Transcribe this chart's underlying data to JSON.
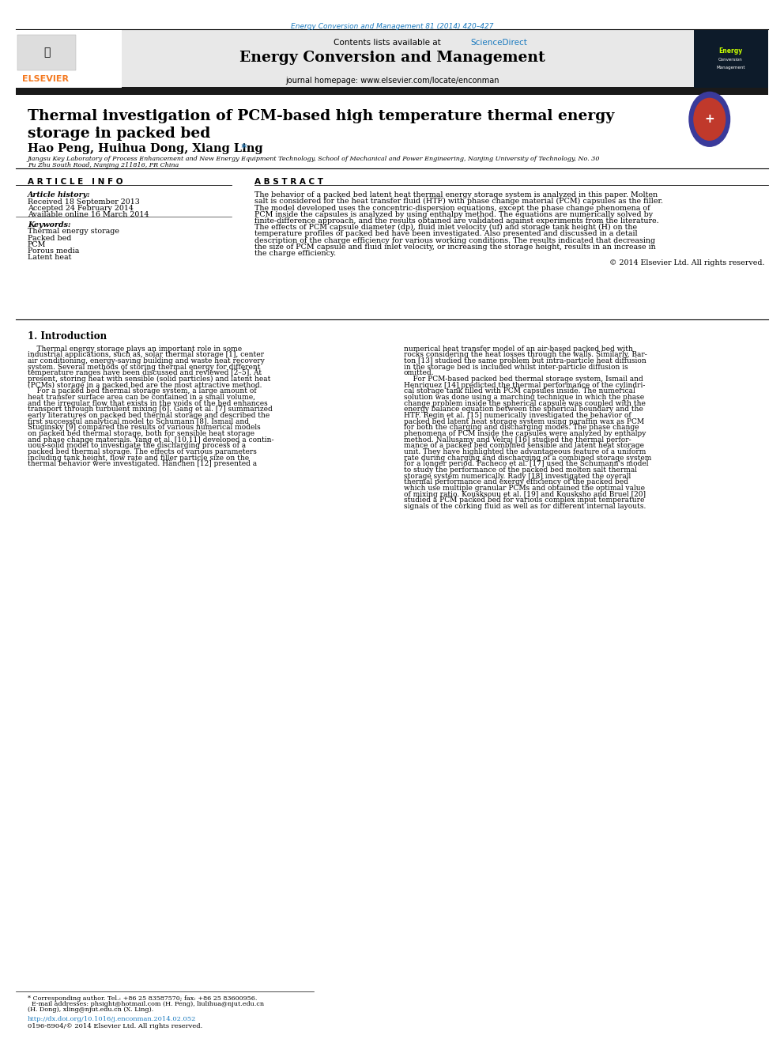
{
  "page_width": 9.92,
  "page_height": 13.23,
  "background_color": "#ffffff",
  "top_url": "Energy Conversion and Management 81 (2014) 420–427",
  "top_url_color": "#1a7abf",
  "header_bg": "#e8e8e8",
  "header_text": "Contents lists available at",
  "sciencedirect_text": "ScienceDirect",
  "sciencedirect_color": "#1a7abf",
  "journal_title": "Energy Conversion and Management",
  "journal_homepage": "journal homepage: www.elsevier.com/locate/enconman",
  "black_bar_color": "#1a1a1a",
  "paper_title_line1": "Thermal investigation of PCM-based high temperature thermal energy",
  "paper_title_line2": "storage in packed bed",
  "authors": "Hao Peng, Huihua Dong, Xiang Ling",
  "affiliation_line1": "Jiangsu Key Laboratory of Process Enhancement and New Energy Equipment Technology, School of Mechanical and Power Engineering, Nanjing University of Technology, No. 30",
  "affiliation_line2": "Pu Zhu South Road, Nanjing 211816, PR China",
  "article_info_header": "A R T I C L E   I N F O",
  "abstract_header": "A B S T R A C T",
  "article_history_label": "Article history:",
  "received": "Received 18 September 2013",
  "accepted": "Accepted 24 February 2014",
  "available": "Available online 16 March 2014",
  "keywords_label": "Keywords:",
  "keywords": [
    "Thermal energy storage",
    "Packed bed",
    "PCM",
    "Porous media",
    "Latent heat"
  ],
  "abstract_text": "The behavior of a packed bed latent heat thermal energy storage system is analyzed in this paper. Molten salt is considered for the heat transfer fluid (HTF) with phase change material (PCM) capsules as the filler. The model developed uses the concentric-dispersion equations, except the phase change phenomena of PCM inside the capsules is analyzed by using enthalpy method. The equations are numerically solved by finite-difference approach, and the results obtained are validated against experiments from the literature. The effects of PCM capsule diameter (dp), fluid inlet velocity (uf) and storage tank height (H) on the temperature profiles of packed bed have been investigated. Also presented and discussed in a detail description of the charge efficiency for various working conditions. The results indicated that decreasing the size of PCM capsule and fluid inlet velocity, or increasing the storage height, results in an increase in the charge efficiency.",
  "copyright": "© 2014 Elsevier Ltd. All rights reserved.",
  "section1_title": "1. Introduction",
  "intro_col1_lines": [
    "    Thermal energy storage plays an important role in some",
    "industrial applications, such as, solar thermal storage [1], center",
    "air conditioning, energy-saving building and waste heat recovery",
    "system. Several methods of storing thermal energy for different",
    "temperature ranges have been discussed and reviewed [2–5]. At",
    "present, storing heat with sensible (solid particles) and latent heat",
    "(PCMs) storage in a packed bed are the most attractive method.",
    "    For a packed bed thermal storage system, a large amount of",
    "heat transfer surface area can be contained in a small volume,",
    "and the irregular flow that exists in the voids of the bed enhances",
    "transport through turbulent mixing [6]. Gang et al. [7] summarized",
    "early literatures on packed bed thermal storage and described the",
    "first successful analytical model to Schumann [8]. Ismail and",
    "Stuginsky [9] compared the results of various numerical models",
    "on packed bed thermal storage, both for sensible heat storage",
    "and phase change materials. Yang et al. [10,11] developed a contin-",
    "uous-solid model to investigate the discharging process of a",
    "packed bed thermal storage. The effects of various parameters",
    "including tank height, flow rate and filler particle size on the",
    "thermal behavior were investigated. Hänchen [12] presented a"
  ],
  "intro_col2_lines": [
    "numerical heat transfer model of an air-based packed bed with",
    "rocks considering the heat losses through the walls. Similarly, Bar-",
    "ton [13] studied the same problem but intra-particle heat diffusion",
    "in the storage bed is included whilst inter-particle diffusion is",
    "omitted.",
    "    For PCM-based packed bed thermal storage system, Ismail and",
    "Henriquez [14] predicted the thermal performance of the cylindri-",
    "cal storage tank filled with PCM capsules inside. The numerical",
    "solution was done using a marching technique in which the phase",
    "change problem inside the spherical capsule was coupled with the",
    "energy balance equation between the spherical boundary and the",
    "HTF. Regin et al. [15] numerically investigated the behavior of",
    "packed bed latent heat storage system using paraffin wax as PCM",
    "for both the charging and discharging modes. The phase change",
    "phenomena of PCM inside the capsules were analyzed by enthalpy",
    "method. Nallusamy and Velraj [16] studied the thermal perfor-",
    "mance of a packed bed combined sensible and latent heat storage",
    "unit. They have highlighted the advantageous feature of a uniform",
    "rate during charging and discharging of a combined storage system",
    "for a longer period. Pacheco et al. [17] used the Schumann's model",
    "to study the performance of the packed bed molten salt thermal",
    "storage system numerically. Rady [18] investigated the overall",
    "thermal performance and exergy efficiency of the packed bed",
    "which use multiple granular PCMs and obtained the optimal value",
    "of mixing ratio. Kousksouu et al. [19] and Kousksho and Bruel [20]",
    "studied a PCM packed bed for various complex input temperature",
    "signals of the corking fluid as well as for different internal layouts."
  ],
  "footnote_line1": "* Corresponding author. Tel.: +86 25 83587570; fax: +86 25 83600956.",
  "footnote_line2": "  E-mail addresses: phsight@hotmail.com (H. Peng), liulihua@njut.edu.cn",
  "footnote_line3": "(H. Dong), xling@njut.edu.cn (X. Ling).",
  "doi_text": "http://dx.doi.org/10.1016/j.enconman.2014.02.052",
  "issn_text": "0196-8904/© 2014 Elsevier Ltd. All rights reserved.",
  "elsevier_orange": "#f47920",
  "link_color": "#1a7abf"
}
